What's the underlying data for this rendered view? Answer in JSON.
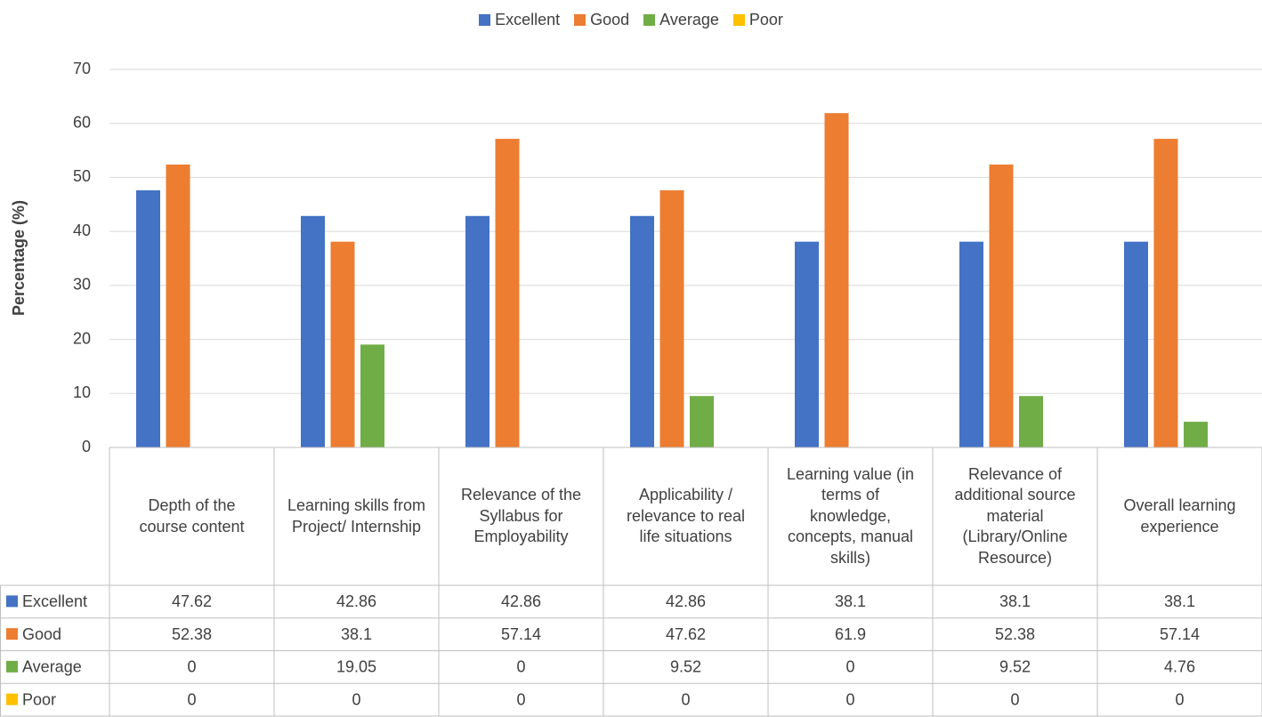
{
  "chart_data": {
    "type": "bar",
    "legend_position": "top",
    "y_label": "Percentage (%)",
    "categories": [
      "Depth of the course content",
      "Learning skills from Project/ Internship",
      "Relevance of the Syllabus for Employability",
      "Applicability / relevance to real life situations",
      "Learning value (in terms of knowledge, concepts, manual skills)",
      "Relevance of additional source material (Library/Online Resource)",
      "Overall learning experience"
    ],
    "series": [
      {
        "name": "Excellent",
        "color": "#4472c4",
        "values": [
          47.62,
          42.86,
          42.86,
          42.86,
          38.1,
          38.1,
          38.1
        ]
      },
      {
        "name": "Good",
        "color": "#ed7d31",
        "values": [
          52.38,
          38.1,
          57.14,
          47.62,
          61.9,
          52.38,
          57.14
        ]
      },
      {
        "name": "Average",
        "color": "#70ad47",
        "values": [
          0,
          19.05,
          0,
          9.52,
          0,
          9.52,
          4.76
        ]
      },
      {
        "name": "Poor",
        "color": "#ffc000",
        "values": [
          0,
          0,
          0,
          0,
          0,
          0,
          0
        ]
      }
    ],
    "ylim": [
      0,
      70
    ],
    "yticks": [
      0,
      10,
      20,
      30,
      40,
      50,
      60,
      70
    ],
    "grid": true,
    "data_table": true
  }
}
